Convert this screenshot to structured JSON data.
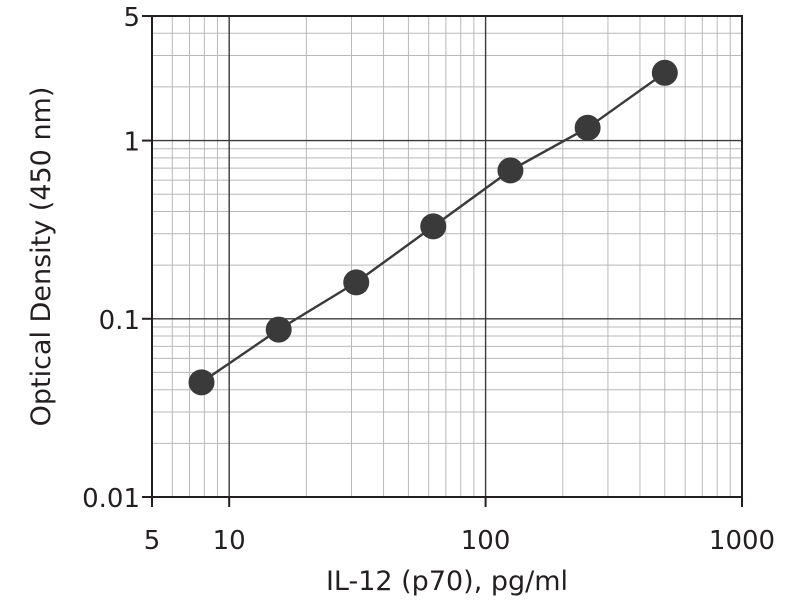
{
  "chart_data": {
    "type": "scatter",
    "x_scale": "log",
    "y_scale": "log",
    "xlabel": "IL-12 (p70), pg/ml",
    "ylabel": "Optical Density (450 nm)",
    "xlim": [
      5,
      1000
    ],
    "ylim": [
      0.01,
      5
    ],
    "x_ticks": [
      {
        "value": 5,
        "label": "5"
      },
      {
        "value": 10,
        "label": "10"
      },
      {
        "value": 100,
        "label": "100"
      },
      {
        "value": 1000,
        "label": "1000"
      }
    ],
    "y_ticks": [
      {
        "value": 0.01,
        "label": "0.01"
      },
      {
        "value": 0.1,
        "label": "0.1"
      },
      {
        "value": 1,
        "label": "1"
      },
      {
        "value": 5,
        "label": "5"
      }
    ],
    "grid": true,
    "connected_by_line": true,
    "series": [
      {
        "x": [
          7.8,
          15.6,
          31.3,
          62.5,
          125,
          250,
          500
        ],
        "y": [
          0.044,
          0.087,
          0.16,
          0.33,
          0.68,
          1.18,
          2.4
        ]
      }
    ],
    "colors": {
      "marker": "#3a3a3a",
      "line": "#3a3a3a",
      "major_grid": "#3a3a3a",
      "minor_grid": "#b8b8b8",
      "axis": "#231f20"
    }
  }
}
